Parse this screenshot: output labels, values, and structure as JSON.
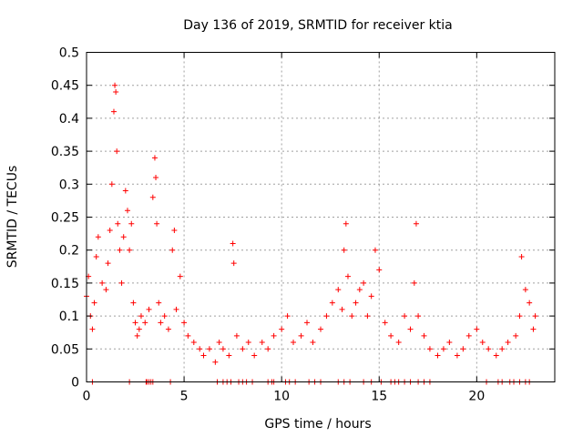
{
  "chart_data": {
    "type": "scatter",
    "title": "Day 136 of 2019, SRMTID for receiver ktia",
    "xlabel": "GPS time / hours",
    "ylabel": "SRMTID / TECUs",
    "xlim": [
      0,
      24
    ],
    "ylim": [
      0,
      0.5
    ],
    "grid": true,
    "marker": "+",
    "color": "#ff0000",
    "xticks": [
      0,
      5,
      10,
      15,
      20
    ],
    "xtick_labels": [
      "0",
      "5",
      "10",
      "15",
      "20"
    ],
    "yticks": [
      0,
      0.05,
      0.1,
      0.15,
      0.2,
      0.25,
      0.3,
      0.35,
      0.4,
      0.45,
      0.5
    ],
    "ytick_labels": [
      "0",
      "0.05",
      "0.1",
      "0.15",
      "0.2",
      "0.25",
      "0.3",
      "0.35",
      "0.4",
      "0.45",
      "0.5"
    ],
    "series": [
      {
        "name": "SRMTID",
        "x": [
          0.0,
          0.1,
          0.2,
          0.3,
          0.4,
          0.5,
          0.6,
          0.8,
          1.0,
          1.1,
          1.2,
          1.3,
          1.4,
          1.45,
          1.5,
          1.55,
          1.6,
          1.7,
          1.8,
          1.9,
          2.0,
          2.1,
          2.2,
          2.3,
          2.4,
          2.5,
          2.6,
          2.7,
          2.8,
          3.0,
          3.2,
          3.4,
          3.5,
          3.55,
          3.6,
          3.7,
          3.8,
          4.0,
          4.2,
          4.4,
          4.5,
          4.6,
          4.8,
          5.0,
          5.2,
          5.5,
          5.8,
          6.0,
          6.3,
          6.6,
          6.8,
          7.0,
          7.3,
          7.5,
          7.55,
          7.7,
          8.0,
          8.3,
          8.6,
          9.0,
          9.3,
          9.6,
          10.0,
          10.3,
          10.6,
          11.0,
          11.3,
          11.6,
          12.0,
          12.3,
          12.6,
          12.9,
          13.1,
          13.2,
          13.3,
          13.4,
          13.6,
          13.8,
          14.0,
          14.2,
          14.4,
          14.6,
          14.8,
          15.0,
          15.3,
          15.6,
          16.0,
          16.3,
          16.6,
          16.8,
          16.9,
          17.0,
          17.3,
          17.6,
          18.0,
          18.3,
          18.6,
          19.0,
          19.3,
          19.6,
          20.0,
          20.3,
          20.6,
          21.0,
          21.3,
          21.6,
          22.0,
          22.2,
          22.3,
          22.5,
          22.7,
          22.9,
          23.0
        ],
        "y": [
          0.13,
          0.16,
          0.1,
          0.08,
          0.12,
          0.19,
          0.22,
          0.15,
          0.14,
          0.18,
          0.23,
          0.3,
          0.41,
          0.45,
          0.44,
          0.35,
          0.24,
          0.2,
          0.15,
          0.22,
          0.29,
          0.26,
          0.2,
          0.24,
          0.12,
          0.09,
          0.07,
          0.08,
          0.1,
          0.09,
          0.11,
          0.28,
          0.34,
          0.31,
          0.24,
          0.12,
          0.09,
          0.1,
          0.08,
          0.2,
          0.23,
          0.11,
          0.16,
          0.09,
          0.07,
          0.06,
          0.05,
          0.04,
          0.05,
          0.03,
          0.06,
          0.05,
          0.04,
          0.21,
          0.18,
          0.07,
          0.05,
          0.06,
          0.04,
          0.06,
          0.05,
          0.07,
          0.08,
          0.1,
          0.06,
          0.07,
          0.09,
          0.06,
          0.08,
          0.1,
          0.12,
          0.14,
          0.11,
          0.2,
          0.24,
          0.16,
          0.1,
          0.12,
          0.14,
          0.15,
          0.1,
          0.13,
          0.2,
          0.17,
          0.09,
          0.07,
          0.06,
          0.1,
          0.08,
          0.15,
          0.24,
          0.1,
          0.07,
          0.05,
          0.04,
          0.05,
          0.06,
          0.04,
          0.05,
          0.07,
          0.08,
          0.06,
          0.05,
          0.04,
          0.05,
          0.06,
          0.07,
          0.1,
          0.19,
          0.14,
          0.12,
          0.08,
          0.1
        ]
      }
    ],
    "zero_points_x": [
      0.3,
      2.2,
      3.05,
      3.1,
      3.2,
      3.3,
      3.4,
      4.3,
      6.7,
      7.0,
      7.2,
      7.4,
      7.8,
      8.0,
      8.2,
      8.5,
      9.3,
      9.5,
      9.6,
      10.2,
      10.4,
      10.7,
      11.4,
      11.7,
      12.0,
      12.9,
      13.2,
      13.5,
      14.2,
      14.6,
      15.1,
      15.6,
      15.8,
      16.0,
      16.3,
      16.6,
      17.0,
      17.3,
      17.6,
      20.5,
      21.1,
      21.3,
      21.7,
      21.9,
      22.2,
      22.5,
      22.7
    ]
  }
}
